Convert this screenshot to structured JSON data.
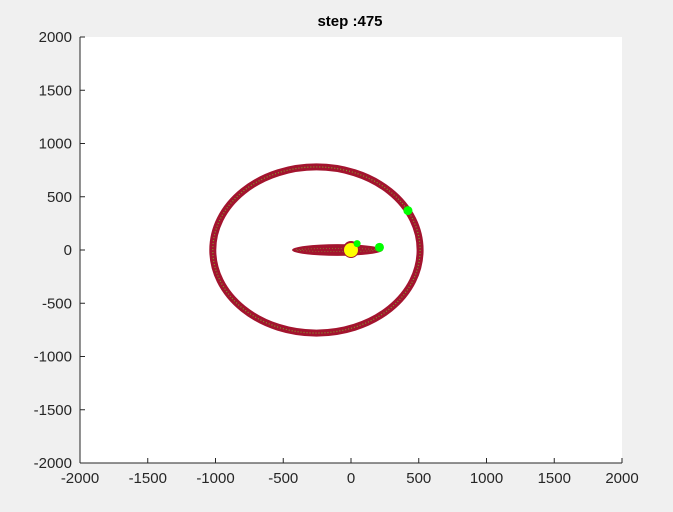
{
  "chart_data": {
    "type": "scatter",
    "title": "step :475",
    "xlabel": "",
    "ylabel": "",
    "xlim": [
      -2000,
      2000
    ],
    "ylim": [
      -2000,
      2000
    ],
    "xticks": [
      -2000,
      -1500,
      -1000,
      -500,
      0,
      500,
      1000,
      1500,
      2000
    ],
    "yticks": [
      -2000,
      -1500,
      -1000,
      -500,
      0,
      500,
      1000,
      1500,
      2000
    ],
    "xtick_labels": [
      "-2000",
      "-1500",
      "-1000",
      "-500",
      "0",
      "500",
      "1000",
      "1500",
      "2000"
    ],
    "ytick_labels": [
      "-2000",
      "-1500",
      "-1000",
      "-500",
      "0",
      "500",
      "1000",
      "1500",
      "2000"
    ],
    "grid": false,
    "colors": {
      "trail": "#a3142e",
      "trail_inner": "#7ba52a",
      "sun": "#ffff00",
      "planet": "#00ff00",
      "figure_bg": "#f0f0f0",
      "axes_bg": "#ffffff"
    },
    "orbits": [
      {
        "name": "outer-orbit",
        "center": [
          -255,
          0
        ],
        "rx": 765,
        "ry": 780
      },
      {
        "name": "inner-orbit",
        "center": [
          -100,
          0
        ],
        "rx": 335,
        "ry": 55
      },
      {
        "name": "central-blob",
        "center": [
          0,
          5
        ],
        "rx": 60,
        "ry": 80
      }
    ],
    "bodies": [
      {
        "name": "sun",
        "x": 0,
        "y": 0,
        "size": 7,
        "color": "#ffff00"
      },
      {
        "name": "planet-outer",
        "x": 420,
        "y": 370,
        "size": 4.5,
        "color": "#00ff00"
      },
      {
        "name": "planet-inner",
        "x": 210,
        "y": 25,
        "size": 4.5,
        "color": "#00ff00"
      },
      {
        "name": "planet-near",
        "x": 45,
        "y": 60,
        "size": 3.5,
        "color": "#00ff00"
      }
    ]
  }
}
